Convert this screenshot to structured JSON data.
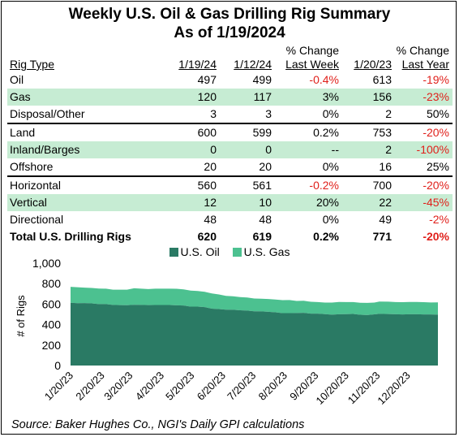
{
  "title_line1": "Weekly U.S. Oil & Gas Drilling Rig Summary",
  "title_line2": "As of 1/19/2024",
  "table": {
    "headers": {
      "rig_type": "Rig Type",
      "col1": "1/19/24",
      "col2": "1/12/24",
      "pct_week_top": "% Change",
      "pct_week_bottom": "Last Week",
      "col4": "1/20/23",
      "pct_year_top": "% Change",
      "pct_year_bottom": "Last Year"
    },
    "rows": [
      {
        "label": "Oil",
        "c1": "497",
        "c2": "499",
        "wk": "-0.4%",
        "yr_val": "613",
        "yr": "-19%"
      },
      {
        "label": "Gas",
        "c1": "120",
        "c2": "117",
        "wk": "3%",
        "yr_val": "156",
        "yr": "-23%"
      },
      {
        "label": "Disposal/Other",
        "c1": "3",
        "c2": "3",
        "wk": "0%",
        "yr_val": "2",
        "yr": "50%"
      },
      {
        "label": "Land",
        "c1": "600",
        "c2": "599",
        "wk": "0.2%",
        "yr_val": "753",
        "yr": "-20%"
      },
      {
        "label": "Inland/Barges",
        "c1": "0",
        "c2": "0",
        "wk": "--",
        "yr_val": "2",
        "yr": "-100%"
      },
      {
        "label": "Offshore",
        "c1": "20",
        "c2": "20",
        "wk": "0%",
        "yr_val": "16",
        "yr": "25%"
      },
      {
        "label": "Horizontal",
        "c1": "560",
        "c2": "561",
        "wk": "-0.2%",
        "yr_val": "700",
        "yr": "-20%"
      },
      {
        "label": "Vertical",
        "c1": "12",
        "c2": "10",
        "wk": "20%",
        "yr_val": "22",
        "yr": "-45%"
      },
      {
        "label": "Directional",
        "c1": "48",
        "c2": "48",
        "wk": "0%",
        "yr_val": "49",
        "yr": "-2%"
      },
      {
        "label": "Total U.S. Drilling Rigs",
        "c1": "620",
        "c2": "619",
        "wk": "0.2%",
        "yr_val": "771",
        "yr": "-20%"
      }
    ]
  },
  "colors": {
    "oil": "#2a7a64",
    "gas": "#4cc190",
    "row_shade": "#c6ecd3",
    "negative": "#e0201b"
  },
  "chart_data": {
    "type": "area",
    "stacked": true,
    "ylabel": "# of Rigs",
    "xlabel": "",
    "ylim": [
      0,
      1000
    ],
    "yticks": [
      "0",
      "200",
      "400",
      "600",
      "800",
      "1,000"
    ],
    "grid": false,
    "legend_position": "top",
    "x": [
      "1/20/23",
      "1/27/23",
      "2/3/23",
      "2/10/23",
      "2/17/23",
      "2/24/23",
      "3/3/23",
      "3/10/23",
      "3/17/23",
      "3/24/23",
      "3/31/23",
      "4/7/23",
      "4/14/23",
      "4/21/23",
      "4/28/23",
      "5/5/23",
      "5/12/23",
      "5/19/23",
      "5/26/23",
      "6/2/23",
      "6/9/23",
      "6/16/23",
      "6/23/23",
      "6/30/23",
      "7/7/23",
      "7/14/23",
      "7/21/23",
      "7/28/23",
      "8/4/23",
      "8/11/23",
      "8/18/23",
      "8/25/23",
      "9/1/23",
      "9/8/23",
      "9/15/23",
      "9/22/23",
      "9/29/23",
      "10/6/23",
      "10/13/23",
      "10/20/23",
      "10/27/23",
      "11/3/23",
      "11/10/23",
      "11/17/23",
      "11/22/23",
      "12/1/23",
      "12/8/23",
      "12/15/23",
      "12/22/23",
      "12/29/23",
      "1/5/24",
      "1/12/24",
      "1/19/24"
    ],
    "xticks": [
      "1/20/23",
      "2/20/23",
      "3/20/23",
      "4/20/23",
      "5/20/23",
      "6/20/23",
      "7/20/23",
      "8/20/23",
      "9/20/23",
      "10/20/23",
      "11/20/23",
      "12/20/23"
    ],
    "series": [
      {
        "name": "U.S. Oil",
        "values": [
          613,
          609,
          610,
          607,
          600,
          600,
          592,
          590,
          589,
          593,
          592,
          590,
          591,
          591,
          591,
          588,
          586,
          575,
          575,
          570,
          556,
          552,
          546,
          545,
          540,
          537,
          530,
          529,
          525,
          520,
          512,
          512,
          513,
          515,
          507,
          507,
          502,
          497,
          501,
          502,
          504,
          496,
          493,
          500,
          505,
          503,
          501,
          499,
          501,
          501,
          499,
          499,
          497
        ]
      },
      {
        "name": "U.S. Gas",
        "values": [
          156,
          156,
          151,
          151,
          152,
          151,
          149,
          151,
          152,
          162,
          159,
          157,
          160,
          160,
          160,
          162,
          158,
          157,
          153,
          150,
          148,
          142,
          135,
          132,
          129,
          128,
          125,
          124,
          125,
          125,
          127,
          128,
          118,
          118,
          116,
          113,
          113,
          118,
          120,
          118,
          116,
          117,
          119,
          115,
          120,
          121,
          119,
          120,
          120,
          120,
          120,
          117,
          120
        ]
      }
    ]
  },
  "source": "Source: Baker Hughes Co., NGI's Daily GPI calculations"
}
